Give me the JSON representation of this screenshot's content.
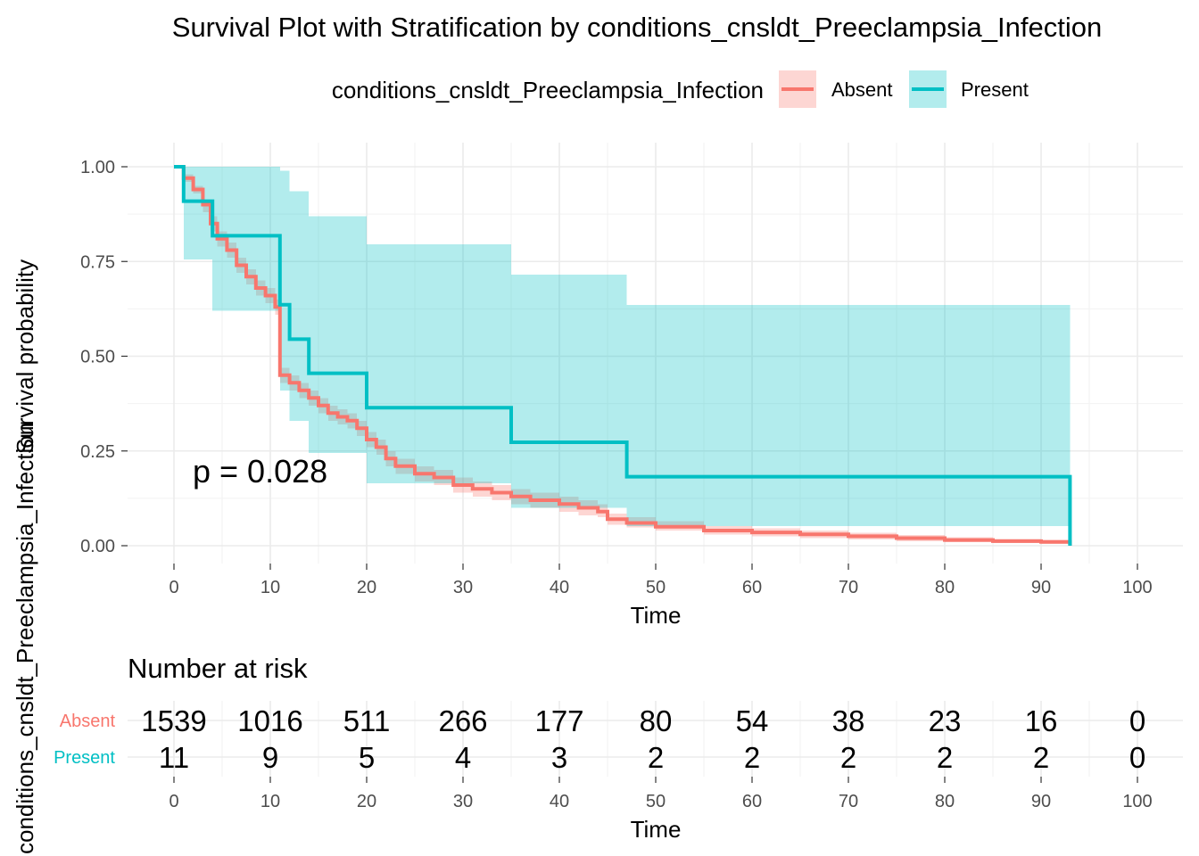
{
  "chart_data": {
    "type": "line",
    "subtype": "kaplan-meier-step",
    "title": "Survival Plot with Stratification by conditions_cnsldt_Preeclampsia_Infection",
    "legend": {
      "title": "conditions_cnsldt_Preeclampsia_Infection",
      "placement": "top",
      "entries": [
        "Absent",
        "Present"
      ]
    },
    "xlabel": "Time",
    "ylabel": "Survival probability",
    "xlim": [
      0,
      100
    ],
    "ylim": [
      0,
      1
    ],
    "x_ticks": [
      0,
      10,
      20,
      30,
      40,
      50,
      60,
      70,
      80,
      90,
      100
    ],
    "y_ticks": [
      0,
      0.25,
      0.5,
      0.75,
      1.0
    ],
    "y_tick_labels": [
      "0.00",
      "0.25",
      "0.50",
      "0.75",
      "1.00"
    ],
    "grid": true,
    "annotation": "p = 0.028",
    "series": [
      {
        "name": "Absent",
        "color": "#F8766D",
        "step": [
          [
            0,
            1.0
          ],
          [
            1,
            0.97
          ],
          [
            2,
            0.94
          ],
          [
            3,
            0.9
          ],
          [
            3.8,
            0.85
          ],
          [
            4.5,
            0.81
          ],
          [
            5.5,
            0.78
          ],
          [
            6.5,
            0.74
          ],
          [
            7.5,
            0.71
          ],
          [
            8.5,
            0.68
          ],
          [
            9.5,
            0.66
          ],
          [
            10.5,
            0.63
          ],
          [
            11,
            0.45
          ],
          [
            12,
            0.43
          ],
          [
            13,
            0.41
          ],
          [
            14,
            0.39
          ],
          [
            15,
            0.37
          ],
          [
            16,
            0.35
          ],
          [
            17,
            0.34
          ],
          [
            18,
            0.33
          ],
          [
            19,
            0.31
          ],
          [
            20,
            0.28
          ],
          [
            21,
            0.26
          ],
          [
            22,
            0.23
          ],
          [
            23,
            0.21
          ],
          [
            25,
            0.19
          ],
          [
            27,
            0.18
          ],
          [
            29,
            0.16
          ],
          [
            31,
            0.15
          ],
          [
            33,
            0.14
          ],
          [
            35,
            0.13
          ],
          [
            37,
            0.12
          ],
          [
            40,
            0.11
          ],
          [
            42,
            0.1
          ],
          [
            44,
            0.09
          ],
          [
            45,
            0.07
          ],
          [
            47,
            0.06
          ],
          [
            50,
            0.05
          ],
          [
            55,
            0.04
          ],
          [
            60,
            0.035
          ],
          [
            65,
            0.03
          ],
          [
            70,
            0.025
          ],
          [
            75,
            0.02
          ],
          [
            80,
            0.015
          ],
          [
            85,
            0.012
          ],
          [
            90,
            0.01
          ],
          [
            93,
            0.0
          ]
        ],
        "ci": [
          [
            0,
            1.0,
            1.0
          ],
          [
            1,
            0.98,
            0.96
          ],
          [
            2,
            0.95,
            0.93
          ],
          [
            3,
            0.91,
            0.88
          ],
          [
            3.8,
            0.87,
            0.83
          ],
          [
            4.5,
            0.83,
            0.79
          ],
          [
            5.5,
            0.8,
            0.76
          ],
          [
            6.5,
            0.76,
            0.72
          ],
          [
            7.5,
            0.73,
            0.69
          ],
          [
            8.5,
            0.7,
            0.66
          ],
          [
            9.5,
            0.68,
            0.64
          ],
          [
            10.5,
            0.65,
            0.61
          ],
          [
            11,
            0.47,
            0.43
          ],
          [
            12,
            0.45,
            0.41
          ],
          [
            13,
            0.43,
            0.39
          ],
          [
            14,
            0.41,
            0.37
          ],
          [
            15,
            0.39,
            0.35
          ],
          [
            16,
            0.37,
            0.33
          ],
          [
            17,
            0.36,
            0.32
          ],
          [
            18,
            0.35,
            0.31
          ],
          [
            19,
            0.33,
            0.29
          ],
          [
            20,
            0.3,
            0.26
          ],
          [
            21,
            0.28,
            0.24
          ],
          [
            22,
            0.25,
            0.21
          ],
          [
            23,
            0.23,
            0.19
          ],
          [
            25,
            0.21,
            0.17
          ],
          [
            27,
            0.2,
            0.16
          ],
          [
            29,
            0.18,
            0.14
          ],
          [
            31,
            0.17,
            0.13
          ],
          [
            33,
            0.16,
            0.12
          ],
          [
            35,
            0.15,
            0.11
          ],
          [
            37,
            0.14,
            0.1
          ],
          [
            40,
            0.13,
            0.09
          ],
          [
            42,
            0.12,
            0.08
          ],
          [
            44,
            0.11,
            0.075
          ],
          [
            45,
            0.085,
            0.055
          ],
          [
            47,
            0.075,
            0.048
          ],
          [
            50,
            0.065,
            0.04
          ],
          [
            55,
            0.052,
            0.03
          ],
          [
            60,
            0.046,
            0.025
          ],
          [
            65,
            0.04,
            0.02
          ],
          [
            70,
            0.034,
            0.016
          ],
          [
            75,
            0.028,
            0.012
          ],
          [
            80,
            0.022,
            0.009
          ],
          [
            85,
            0.018,
            0.007
          ],
          [
            90,
            0.015,
            0.005
          ],
          [
            93,
            0.015,
            0.005
          ]
        ]
      },
      {
        "name": "Present",
        "color": "#00BFC4",
        "step": [
          [
            0,
            1.0
          ],
          [
            1,
            0.909
          ],
          [
            4,
            0.818
          ],
          [
            11,
            0.636
          ],
          [
            12,
            0.545
          ],
          [
            14,
            0.455
          ],
          [
            20,
            0.364
          ],
          [
            35,
            0.273
          ],
          [
            47,
            0.182
          ],
          [
            93,
            0.0
          ]
        ],
        "ci": [
          [
            0,
            1.0,
            1.0
          ],
          [
            1,
            1.0,
            0.755
          ],
          [
            4,
            1.0,
            0.62
          ],
          [
            11,
            0.99,
            0.41
          ],
          [
            12,
            0.935,
            0.33
          ],
          [
            14,
            0.87,
            0.245
          ],
          [
            20,
            0.795,
            0.165
          ],
          [
            35,
            0.715,
            0.1
          ],
          [
            47,
            0.635,
            0.052
          ],
          [
            93,
            0.635,
            0.052
          ]
        ]
      }
    ],
    "risk_table": {
      "title": "Number at risk",
      "times": [
        0,
        10,
        20,
        30,
        40,
        50,
        60,
        70,
        80,
        90,
        100
      ],
      "rows": [
        {
          "name": "Absent",
          "color": "#F8766D",
          "values": [
            1539,
            1016,
            511,
            266,
            177,
            80,
            54,
            38,
            23,
            16,
            0
          ]
        },
        {
          "name": "Present",
          "color": "#00BFC4",
          "values": [
            11,
            9,
            5,
            4,
            3,
            2,
            2,
            2,
            2,
            2,
            0
          ]
        }
      ],
      "xlabel": "Time",
      "ylabel": "conditions_cnsldt_Preeclampsia_Infection"
    }
  }
}
